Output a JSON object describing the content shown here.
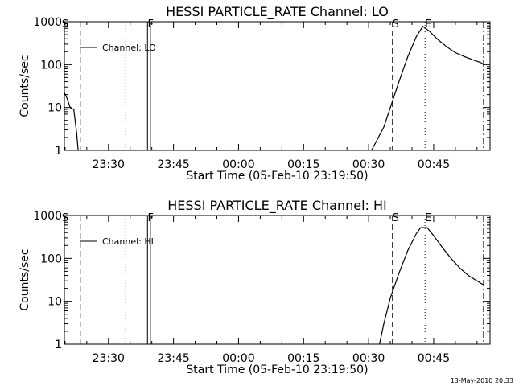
{
  "footer": {
    "date": "13-May-2010 20:33"
  },
  "chart_data": [
    {
      "type": "line",
      "title": "HESSI PARTICLE_RATE Channel: LO",
      "xlabel": "Start Time (05-Feb-10 23:19:50)",
      "ylabel": "Counts/sec",
      "yscale": "log",
      "xlim": [
        "23:19:50",
        "00:58:00"
      ],
      "ylim": [
        1,
        1000
      ],
      "x_ticks": [
        "23:30",
        "23:45",
        "00:00",
        "00:15",
        "00:30",
        "00:45"
      ],
      "y_ticks": [
        "1",
        "10",
        "100",
        "1000"
      ],
      "grid": false,
      "legend": {
        "label": "Channel: LO",
        "position": "top-left"
      },
      "markers": [
        {
          "label": "S",
          "time": "23:19:50",
          "style": "dashed-label"
        },
        {
          "label": "",
          "time": "23:23:30",
          "style": "dashed"
        },
        {
          "label": "",
          "time": "23:34:00",
          "style": "dotted"
        },
        {
          "label": "F",
          "time": "23:39:00",
          "style": "solid"
        },
        {
          "label": "",
          "time": "23:39:40",
          "style": "solid"
        },
        {
          "label": "S",
          "time": "00:35:30",
          "style": "dashed"
        },
        {
          "label": "E",
          "time": "00:43:00",
          "style": "dotted"
        },
        {
          "label": "",
          "time": "00:56:30",
          "style": "dashdot"
        }
      ],
      "series": [
        {
          "name": "Channel: LO",
          "segments": [
            {
              "x": [
                "23:19:50",
                "23:20:30",
                "23:21:10",
                "23:22:00",
                "23:22:40",
                "23:23:00"
              ],
              "y": [
                22,
                16,
                10,
                9,
                2.5,
                1
              ]
            },
            {
              "x": [
                "00:30:40",
                "00:32:00",
                "00:33:30",
                "00:35:00",
                "00:37:00",
                "00:39:00",
                "00:41:00",
                "00:42:30",
                "00:44:00",
                "00:46:00",
                "00:48:00",
                "00:50:00",
                "00:52:00",
                "00:54:00",
                "00:56:00",
                "00:56:30"
              ],
              "y": [
                1,
                1.8,
                3.5,
                10,
                40,
                150,
                450,
                780,
                600,
                380,
                260,
                190,
                155,
                130,
                110,
                100
              ]
            }
          ]
        }
      ]
    },
    {
      "type": "line",
      "title": "HESSI PARTICLE_RATE Channel: HI",
      "xlabel": "Start Time (05-Feb-10 23:19:50)",
      "ylabel": "Counts/sec",
      "yscale": "log",
      "xlim": [
        "23:19:50",
        "00:58:00"
      ],
      "ylim": [
        1,
        1000
      ],
      "x_ticks": [
        "23:30",
        "23:45",
        "00:00",
        "00:15",
        "00:30",
        "00:45"
      ],
      "y_ticks": [
        "1",
        "10",
        "100",
        "1000"
      ],
      "grid": false,
      "legend": {
        "label": "Channel: HI",
        "position": "top-left"
      },
      "markers": [
        {
          "label": "S",
          "time": "23:19:50",
          "style": "dashed-label"
        },
        {
          "label": "",
          "time": "23:23:30",
          "style": "dashed"
        },
        {
          "label": "",
          "time": "23:34:00",
          "style": "dotted"
        },
        {
          "label": "F",
          "time": "23:39:00",
          "style": "solid"
        },
        {
          "label": "",
          "time": "23:39:40",
          "style": "solid"
        },
        {
          "label": "S",
          "time": "00:35:30",
          "style": "dashed"
        },
        {
          "label": "E",
          "time": "00:43:00",
          "style": "dotted"
        },
        {
          "label": "",
          "time": "00:56:30",
          "style": "dashdot"
        }
      ],
      "series": [
        {
          "name": "Channel: HI",
          "segments": [
            {
              "x": [
                "00:32:30",
                "00:33:30",
                "00:35:00",
                "00:37:00",
                "00:39:00",
                "00:41:00",
                "00:42:00",
                "00:43:30",
                "00:45:00",
                "00:47:00",
                "00:49:00",
                "00:51:00",
                "00:53:00",
                "00:55:00",
                "00:56:30"
              ],
              "y": [
                1,
                3,
                12,
                45,
                150,
                380,
                520,
                520,
                340,
                180,
                100,
                60,
                40,
                30,
                24
              ]
            }
          ]
        }
      ]
    }
  ]
}
